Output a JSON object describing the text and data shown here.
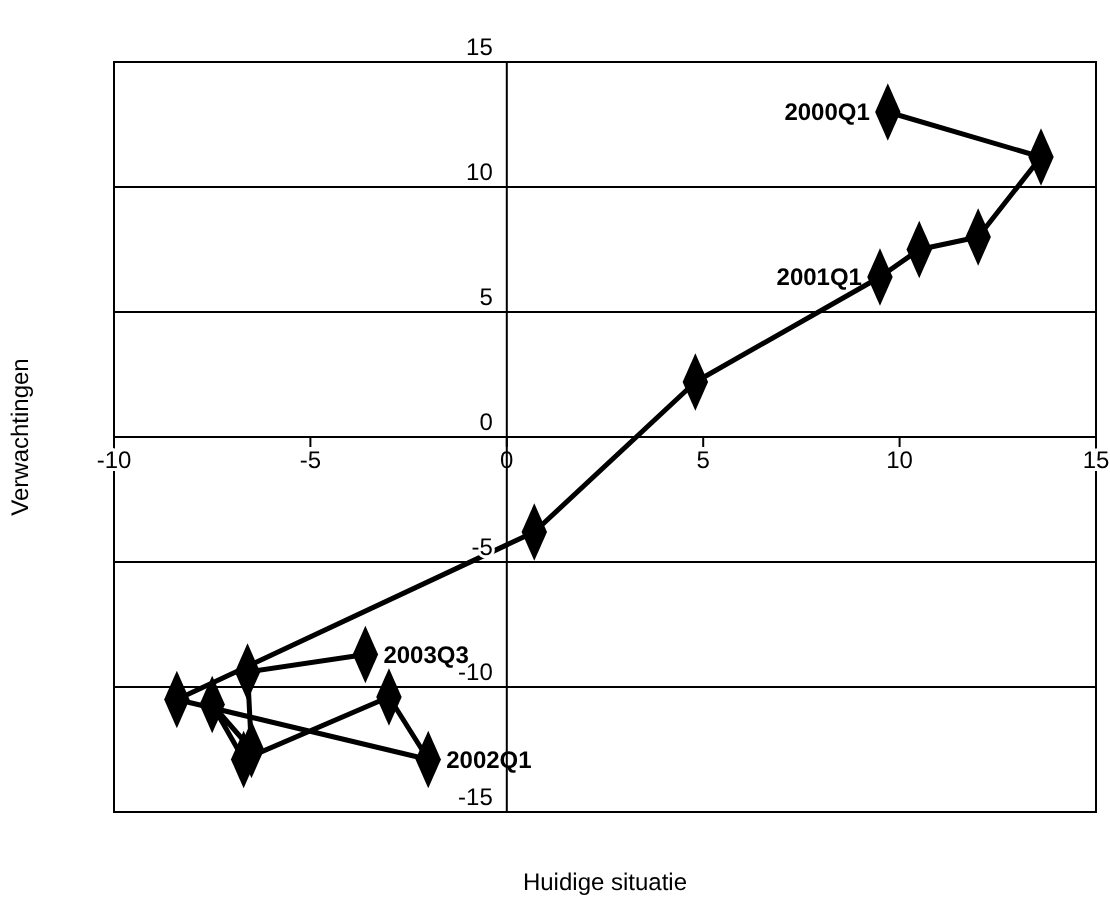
{
  "chart_data": {
    "type": "line",
    "xlabel": "Huidige situatie",
    "ylabel": "Verwachtingen",
    "xlim": [
      -10,
      15
    ],
    "ylim": [
      -15,
      15
    ],
    "xticks": [
      -10,
      -5,
      0,
      5,
      10,
      15
    ],
    "yticks": [
      -15,
      -10,
      -5,
      0,
      5,
      10,
      15
    ],
    "grid": "y",
    "marker": "diamond",
    "line_style": "solid",
    "series": [
      {
        "color": "#000000",
        "x": [
          9.7,
          13.6,
          12,
          10.5,
          9.5,
          4.8,
          0.7,
          -8.4,
          -2,
          -3,
          -6.7,
          -7.5,
          -6.5,
          -6.6,
          -3.6
        ],
        "values": [
          13,
          11.2,
          8,
          7.5,
          6.4,
          2.2,
          -3.8,
          -10.5,
          -12.9,
          -10.4,
          -12.9,
          -10.7,
          -12.5,
          -9.4,
          -8.7
        ]
      }
    ],
    "annotations": [
      {
        "text": "2000Q1",
        "x": 9.7,
        "y": 13
      },
      {
        "text": "2001Q1",
        "x": 9.5,
        "y": 6.4
      },
      {
        "text": "2002Q1",
        "x": -2,
        "y": -12.9
      },
      {
        "text": "2003Q3",
        "x": -3.6,
        "y": -8.7
      }
    ]
  }
}
